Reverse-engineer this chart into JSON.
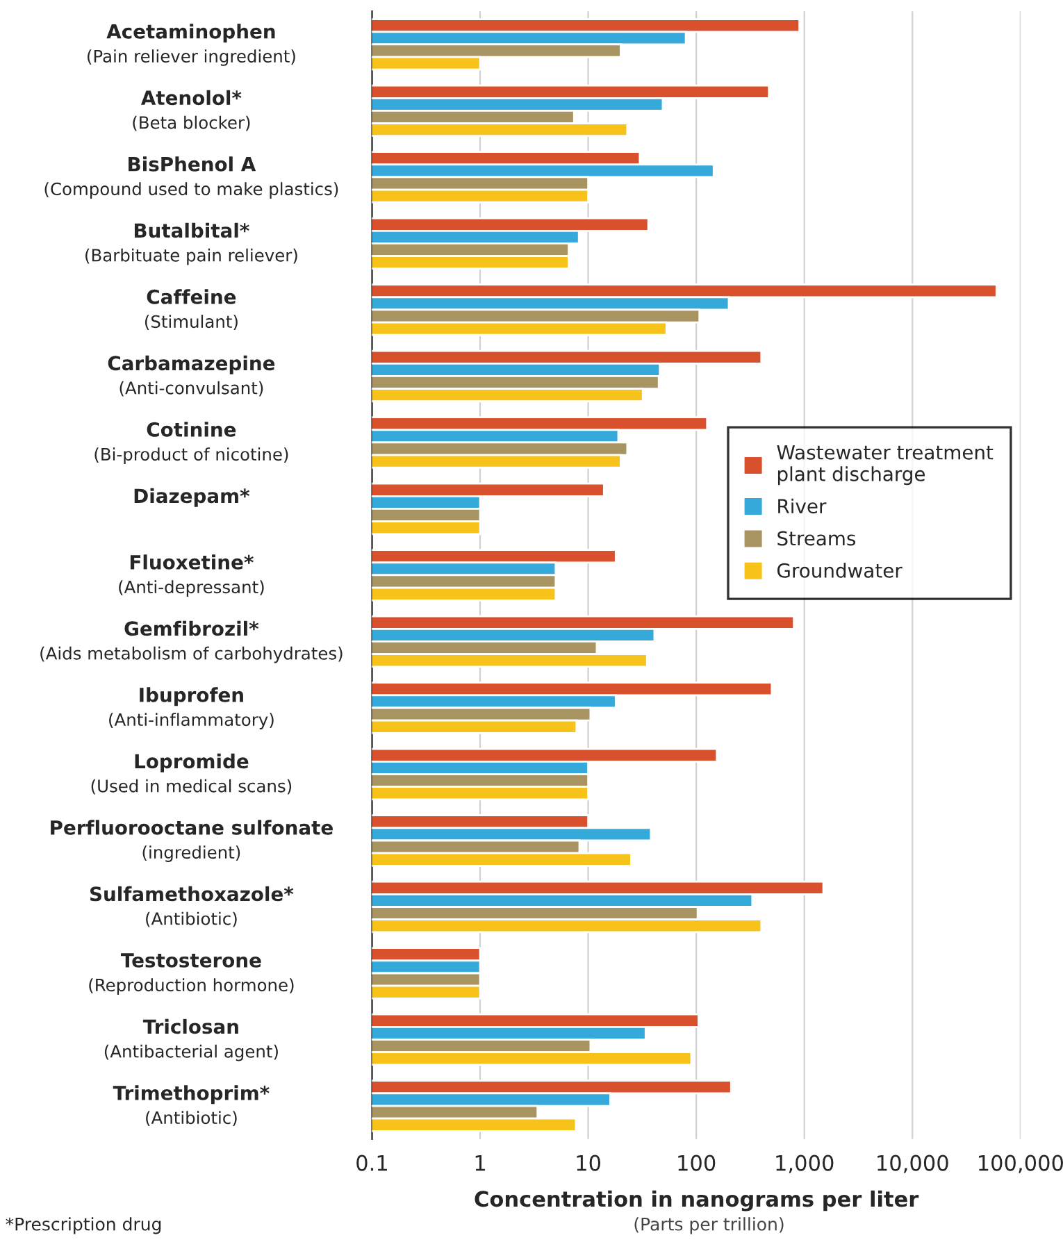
{
  "chart_data": {
    "type": "bar",
    "orientation": "horizontal",
    "log": "x",
    "grid": "x",
    "legend": "right",
    "categories": [
      "Acetaminophen\n(Pain reliever ingredient)",
      "Atenolol*\n(Beta blocker)",
      "BisPhenol A\n(Compound used to make plastics)",
      "Butalbital*\n(Barbituate pain reliever)",
      "Caffeine\n(Stimulant)",
      "Carbamazepine\n(Anti-convulsant)",
      "Cotinine\n(Bi-product of nicotine)",
      "Diazepam*",
      "Fluoxetine*\n(Anti-depressant)",
      "Gemfibrozil*\n(Aids metabolism of carbohydrates)",
      "Ibuprofen\n(Anti-inflammatory)",
      "Lopromide\n(Used in medical scans)",
      "Perfluorooctane sulfonate\n(ingredient)",
      "Sulfamethoxazole*\n(Antibiotic)",
      "Testosterone\n(Reproduction hormone)",
      "Triclosan\n(Antibacterial agent)",
      "Trimethoprim*\n(Antibiotic)"
    ],
    "series": [
      {
        "name": "Wastewater treatment\nplant discharge",
        "color": "#d9512c",
        "values": [
          900,
          470,
          30,
          36,
          60000,
          400,
          126,
          14,
          18,
          800,
          500,
          155,
          10,
          1500,
          1,
          105,
          210
        ]
      },
      {
        "name": "River",
        "color": "#35a9d9",
        "values": [
          80,
          49,
          145,
          8.2,
          200,
          46,
          19,
          1,
          5,
          41,
          18,
          10,
          38,
          330,
          1,
          34,
          16
        ]
      },
      {
        "name": "Streams",
        "color": "#a89460",
        "values": [
          20,
          7.4,
          10,
          6.6,
          107,
          45,
          23,
          1,
          5,
          12,
          10.5,
          10,
          8.3,
          103,
          1,
          10.5,
          3.4
        ]
      },
      {
        "name": "Groundwater",
        "color": "#f7c21a",
        "values": [
          1,
          23,
          10,
          6.6,
          53,
          32,
          20,
          1,
          5,
          35,
          7.8,
          10,
          25,
          400,
          1,
          90,
          7.7
        ]
      }
    ],
    "xlim": [
      0.1,
      100000
    ],
    "xticks": [
      0.1,
      1,
      10,
      100,
      {
        "value": 1000,
        "label": "1,000"
      },
      {
        "value": 10000,
        "label": "10,000"
      },
      {
        "value": 100000,
        "label": "100,000"
      }
    ],
    "xlabel": "Concentration in nanograms per liter",
    "annotations": [
      "(Parts per trillion)",
      "*Prescription drug"
    ]
  }
}
